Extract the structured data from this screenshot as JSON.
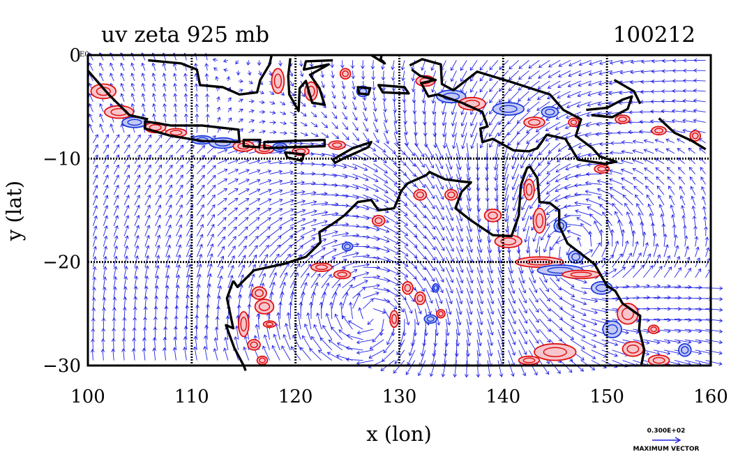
{
  "chart_data": {
    "type": "vector-field-contour",
    "title": "uv zeta 925 mb",
    "date": "100212",
    "xlabel": "x (lon)",
    "ylabel": "y (lat)",
    "xlim": [
      100,
      160
    ],
    "ylim": [
      -30,
      0
    ],
    "x_ticks": [
      "100",
      "110",
      "120",
      "130",
      "140",
      "150",
      "160"
    ],
    "y_ticks": [
      "0",
      "−10",
      "−20",
      "−30"
    ],
    "y_tick_values": [
      0,
      -10,
      -20,
      -30
    ],
    "x_tick_values": [
      100,
      110,
      120,
      130,
      140,
      150,
      160
    ],
    "grid": true,
    "corner_label": "E0",
    "reference_vector": {
      "magnitude_label": "0.300E+02",
      "caption": "MAXIMUM VECTOR"
    },
    "colors": {
      "vectors": "#1f1fe6",
      "positive_contour": "#e01010",
      "negative_contour": "#1b3bdc",
      "positive_fill": "#f7c6cc",
      "negative_fill": "#c4c8f5",
      "coastline": "#000000"
    }
  }
}
